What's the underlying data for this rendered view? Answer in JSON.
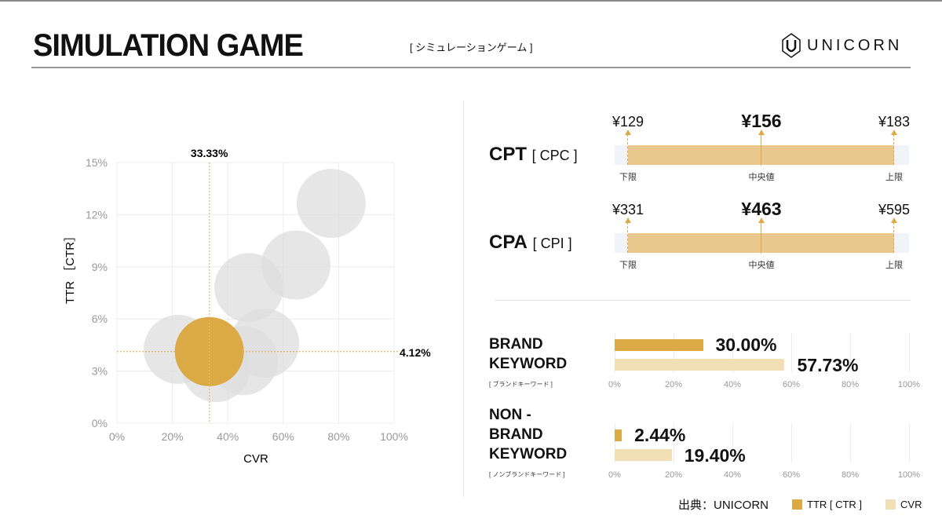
{
  "header": {
    "title": "SIMULATION GAME",
    "subtitle": "[ シミュレーションゲーム ]",
    "logo_text": "UNICORN"
  },
  "colors": {
    "accent": "#dcaa45",
    "accent_light": "#f2dfb5",
    "range_fill": "#e8c88c",
    "bubble": "#e3e3e3"
  },
  "chart_data": [
    {
      "type": "scatter",
      "title": "",
      "xlabel": "CVR",
      "ylabel": "TTR ［CTR］",
      "xlim": [
        0,
        100
      ],
      "ylim": [
        0,
        15
      ],
      "xticks": [
        "0%",
        "20%",
        "40%",
        "60%",
        "80%",
        "100%"
      ],
      "yticks": [
        "0%",
        "3%",
        "6%",
        "9%",
        "12%",
        "15%"
      ],
      "grid": true,
      "points": [
        {
          "x": 77.3,
          "y": 12.65
        },
        {
          "x": 64.6,
          "y": 9.1
        },
        {
          "x": 47.6,
          "y": 7.8
        },
        {
          "x": 53.3,
          "y": 4.6
        },
        {
          "x": 22.1,
          "y": 4.25
        },
        {
          "x": 45.6,
          "y": 3.6
        },
        {
          "x": 35.7,
          "y": 3.2
        }
      ],
      "highlight": {
        "x": 33.33,
        "y": 4.12,
        "x_label": "33.33%",
        "y_label": "4.12%"
      }
    },
    {
      "type": "range",
      "metrics": [
        {
          "name": "CPT",
          "sub": "[ CPC ]",
          "low": "¥129",
          "mid": "¥156",
          "high": "¥183",
          "low_label": "下限",
          "mid_label": "中央値",
          "high_label": "上限"
        },
        {
          "name": "CPA",
          "sub": "[ CPI ]",
          "low": "¥331",
          "mid": "¥463",
          "high": "¥595",
          "low_label": "下限",
          "mid_label": "中央値",
          "high_label": "上限"
        }
      ]
    },
    {
      "type": "bar",
      "xlim": [
        0,
        100
      ],
      "xticks": [
        "0%",
        "20%",
        "40%",
        "60%",
        "80%",
        "100%"
      ],
      "legend": [
        {
          "name": "TTR [ CTR ]"
        },
        {
          "name": "CVR"
        }
      ],
      "groups": [
        {
          "title_lines": [
            "BRAND",
            "KEYWORD"
          ],
          "sub": "[ ブランドキーワード ]",
          "ttr": 30.0,
          "ttr_label": "30.00%",
          "cvr": 57.73,
          "cvr_label": "57.73%"
        },
        {
          "title_lines": [
            "NON -",
            "BRAND",
            "KEYWORD"
          ],
          "sub": "[ ノンブランドキーワード ]",
          "ttr": 2.44,
          "ttr_label": "2.44%",
          "cvr": 19.4,
          "cvr_label": "19.40%"
        }
      ]
    }
  ],
  "footer": {
    "source": "出典：UNICORN"
  }
}
